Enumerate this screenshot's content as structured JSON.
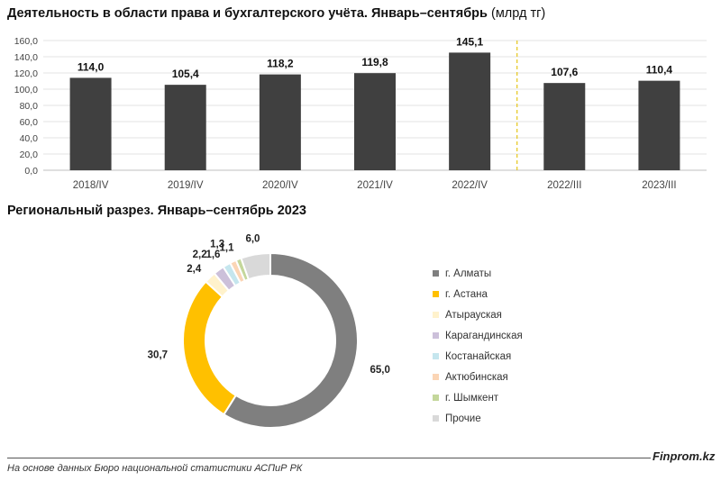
{
  "chart_data": [
    {
      "type": "bar",
      "title": "Деятельность в области права и бухгалтерского учёта. Январь–сентябрь",
      "unit": "(млрд тг)",
      "categories": [
        "2018/IV",
        "2019/IV",
        "2020/IV",
        "2021/IV",
        "2022/IV",
        "2022/III",
        "2023/III"
      ],
      "values": [
        114.0,
        105.4,
        118.2,
        119.8,
        145.1,
        107.6,
        110.4
      ],
      "value_labels": [
        "114,0",
        "105,4",
        "118,2",
        "119,8",
        "145,1",
        "107,6",
        "110,4"
      ],
      "ylim": [
        0,
        160
      ],
      "yticks": [
        "0,0",
        "20,0",
        "40,0",
        "60,0",
        "80,0",
        "100,0",
        "120,0",
        "140,0",
        "160,0"
      ],
      "grid": true,
      "bar_color": "#404040",
      "separator_color": "#e6c619"
    },
    {
      "type": "pie",
      "title": "Региональный разрез. Январь–сентябрь 2023",
      "categories": [
        "г. Алматы",
        "г. Астана",
        "Атырауская",
        "Карагандинская",
        "Костанайская",
        "Актюбинская",
        "г. Шымкент",
        "Прочие"
      ],
      "values": [
        65.0,
        30.7,
        2.4,
        2.2,
        1.6,
        1.3,
        1.1,
        6.0
      ],
      "value_labels": [
        "65,0",
        "30,7",
        "2,4",
        "2,2",
        "1,6",
        "1,3",
        "1,1",
        "6,0"
      ],
      "colors": [
        "#7f7f7f",
        "#ffc000",
        "#fff2cc",
        "#ccc0da",
        "#c5e6ee",
        "#fbd5b5",
        "#c4d79b",
        "#d9d9d9"
      ],
      "legend": "right"
    }
  ],
  "footer": {
    "source": "На основе данных Бюро национальной статистики АСПиР РК",
    "brand": "Finprom.kz"
  }
}
